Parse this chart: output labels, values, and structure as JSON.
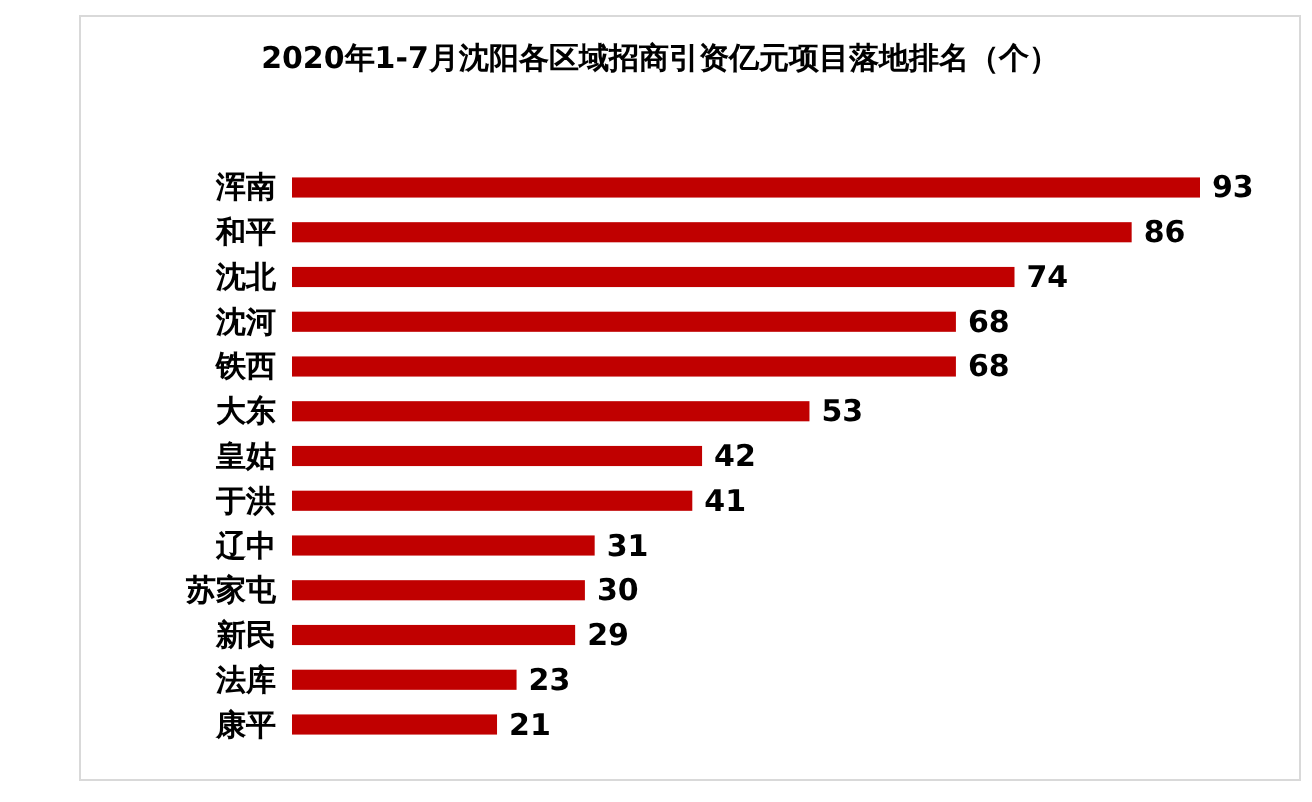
{
  "chart_data": {
    "type": "bar",
    "orientation": "horizontal",
    "title": "2020年1-7月沈阳各区域招商引资亿元项目落地排名（个）",
    "categories": [
      "浑南",
      "和平",
      "沈北",
      "沈河",
      "铁西",
      "大东",
      "皇姑",
      "于洪",
      "辽中",
      "苏家屯",
      "新民",
      "法库",
      "康平"
    ],
    "values": [
      93,
      86,
      74,
      68,
      68,
      53,
      42,
      41,
      31,
      30,
      29,
      23,
      21
    ],
    "color": "#c00000",
    "data_labels": true
  }
}
